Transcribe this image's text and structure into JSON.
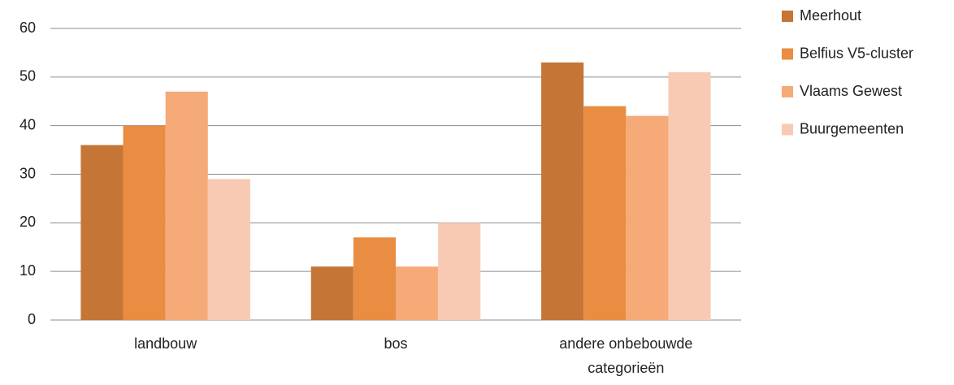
{
  "chart_data": {
    "type": "bar",
    "categories": [
      "landbouw",
      "bos",
      "andere onbebouwde categorieën"
    ],
    "series": [
      {
        "name": "Meerhout",
        "color": "#c57535",
        "values": [
          36,
          11,
          53
        ]
      },
      {
        "name": "Belfius V5-cluster",
        "color": "#e88d41",
        "values": [
          40,
          17,
          44
        ]
      },
      {
        "name": "Vlaams Gewest",
        "color": "#f6aa78",
        "values": [
          47,
          11,
          42
        ]
      },
      {
        "name": "Buurgemeenten",
        "color": "#f8cab4",
        "values": [
          29,
          20,
          51
        ]
      }
    ],
    "ylim": [
      0,
      60
    ],
    "yticks": [
      0,
      10,
      20,
      30,
      40,
      50,
      60
    ],
    "grid": true,
    "legend": "right"
  }
}
